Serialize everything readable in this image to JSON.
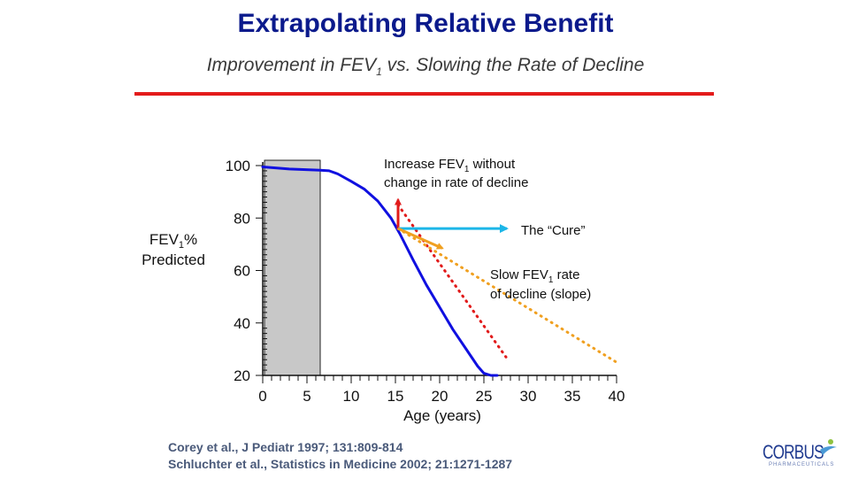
{
  "slide": {
    "title": "Extrapolating Relative Benefit",
    "subtitle_prefix": "Improvement in FEV",
    "subtitle_sub": "1",
    "subtitle_suffix": " vs. Slowing the  Rate of Decline",
    "references": [
      "Corey et al., J Pediatr 1997; 131:809-814",
      "Schluchter et al., Statistics in Medicine 2002; 21:1271-1287"
    ],
    "logo": {
      "name": "CORBUS",
      "tagline": "PHARMACEUTICALS",
      "mark": "person-swoosh-icon"
    }
  },
  "chart_data": {
    "type": "line",
    "xlabel": "Age (years)",
    "ylabel_line1_prefix": "FEV",
    "ylabel_line1_sub": "1",
    "ylabel_line1_suffix": "%",
    "ylabel_line2": "Predicted",
    "xlim": [
      0,
      40
    ],
    "ylim": [
      20,
      100
    ],
    "x_ticks": [
      0,
      5,
      10,
      15,
      20,
      25,
      30,
      35,
      40
    ],
    "y_ticks": [
      20,
      40,
      60,
      80,
      100
    ],
    "shaded_region": {
      "x": [
        0,
        6.5
      ],
      "color": "#c8c8c8"
    },
    "series": [
      {
        "style": "solid",
        "color": "#1010e0",
        "points": [
          [
            0,
            99.5
          ],
          [
            3,
            98.7
          ],
          [
            6.5,
            98.2
          ],
          [
            7.5,
            98
          ],
          [
            8.5,
            96.8
          ],
          [
            10,
            94
          ],
          [
            11.5,
            91
          ],
          [
            13,
            86.5
          ],
          [
            14.5,
            80
          ],
          [
            15.5,
            74
          ],
          [
            17,
            64
          ],
          [
            18.5,
            54.5
          ],
          [
            20,
            46
          ],
          [
            21.5,
            37.5
          ],
          [
            23,
            30
          ],
          [
            24.3,
            23.5
          ],
          [
            25,
            20.8
          ],
          [
            25.8,
            20
          ],
          [
            26.5,
            20
          ]
        ]
      },
      {
        "style": "dotted",
        "color": "#e11b1b",
        "points": [
          [
            15.3,
            85
          ],
          [
            27.5,
            27
          ]
        ]
      },
      {
        "style": "dotted",
        "color": "#f0a020",
        "points": [
          [
            15.3,
            76
          ],
          [
            40,
            25
          ]
        ]
      }
    ],
    "arrows": [
      {
        "color": "#e11b1b",
        "from": [
          15.3,
          76
        ],
        "to": [
          15.3,
          87
        ]
      },
      {
        "color": "#1cb6e8",
        "from": [
          15.3,
          76
        ],
        "to": [
          27.6,
          76
        ]
      },
      {
        "color": "#f0a020",
        "from": [
          15.3,
          76
        ],
        "to": [
          20.3,
          68.5
        ]
      }
    ],
    "annotations": [
      {
        "id": "increase",
        "line1_prefix": "Increase FEV",
        "line1_sub": "1",
        "line1_suffix": " without",
        "line2": "change in rate of decline"
      },
      {
        "id": "cure",
        "text": "The “Cure”"
      },
      {
        "id": "slow",
        "line1_prefix": "Slow FEV",
        "line1_sub": "1",
        "line1_suffix": " rate",
        "line2": "of decline (slope)"
      }
    ]
  }
}
